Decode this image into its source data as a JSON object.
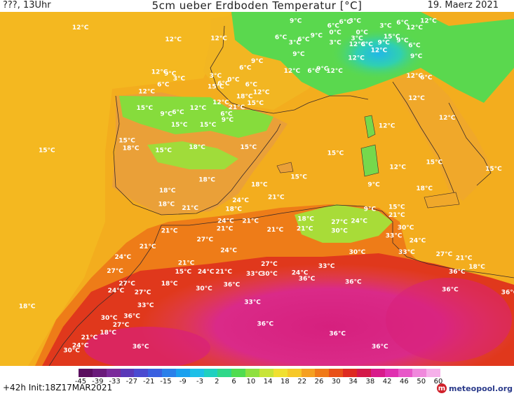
{
  "header": {
    "left_label": "???, 13Uhr",
    "title": "5cm ueber Erdboden Temperatur [°C]",
    "date": "19. Maerz 2021"
  },
  "footer": {
    "run_info": "+42h  Init:18Z17MAR2021",
    "brand": "meteopool.org",
    "brand_icon": "meteopool-logo-icon"
  },
  "legend": {
    "ticks": [
      "-45",
      "-39",
      "-33",
      "-27",
      "-21",
      "-15",
      "-9",
      "-3",
      "2",
      "6",
      "10",
      "14",
      "18",
      "22",
      "26",
      "30",
      "34",
      "38",
      "42",
      "46",
      "50",
      "60"
    ],
    "colors": [
      "#5a0e5e",
      "#6a1a7a",
      "#7a2a9a",
      "#5a38b8",
      "#4a4ad0",
      "#3a60e0",
      "#2a80ea",
      "#1aa0ef",
      "#1ec0e8",
      "#20d0c0",
      "#30d88a",
      "#50dc50",
      "#8ee040",
      "#c8e438",
      "#f0e030",
      "#f6c828",
      "#f5a020",
      "#f07a18",
      "#e85018",
      "#de2a20",
      "#d41848",
      "#d81a8a",
      "#e030b0",
      "#e858c8",
      "#f088dc",
      "#f6b0ea"
    ]
  },
  "temperature_labels": [
    {
      "t": "12°C",
      "lon": -15.2,
      "lat": 47.8
    },
    {
      "t": "12°C",
      "lon": -5.8,
      "lat": 46.6
    },
    {
      "t": "12°C",
      "lon": -1.2,
      "lat": 46.7
    },
    {
      "t": "9°C",
      "lon": 6.8,
      "lat": 48.5
    },
    {
      "t": "6°C",
      "lon": 10.6,
      "lat": 48.0
    },
    {
      "t": "3°C",
      "lon": 12.8,
      "lat": 48.5
    },
    {
      "t": "6°C",
      "lon": 11.8,
      "lat": 48.4
    },
    {
      "t": "3°C",
      "lon": 15.9,
      "lat": 48.0
    },
    {
      "t": "6°C",
      "lon": 17.6,
      "lat": 48.3
    },
    {
      "t": "12°C",
      "lon": 20.0,
      "lat": 48.5
    },
    {
      "t": "12°C",
      "lon": 18.6,
      "lat": 47.8
    },
    {
      "t": "0°C",
      "lon": 10.8,
      "lat": 47.3
    },
    {
      "t": "0°C",
      "lon": 13.5,
      "lat": 47.3
    },
    {
      "t": "3°C",
      "lon": 13.0,
      "lat": 46.7
    },
    {
      "t": "9°C",
      "lon": 8.9,
      "lat": 47.0
    },
    {
      "t": "6°C",
      "lon": 7.6,
      "lat": 46.6
    },
    {
      "t": "6°C",
      "lon": 5.3,
      "lat": 46.8
    },
    {
      "t": "3°C",
      "lon": 6.7,
      "lat": 46.3
    },
    {
      "t": "3°C",
      "lon": 10.8,
      "lat": 46.3
    },
    {
      "t": "12°C",
      "lon": 12.8,
      "lat": 46.1
    },
    {
      "t": "6°C",
      "lon": 14.0,
      "lat": 46.1
    },
    {
      "t": "9°C",
      "lon": 15.7,
      "lat": 46.3
    },
    {
      "t": "15°C",
      "lon": 16.3,
      "lat": 46.9
    },
    {
      "t": "9°C",
      "lon": 17.6,
      "lat": 46.5
    },
    {
      "t": "6°C",
      "lon": 18.8,
      "lat": 46.0
    },
    {
      "t": "12°C",
      "lon": 15.0,
      "lat": 45.5
    },
    {
      "t": "12°C",
      "lon": 12.7,
      "lat": 44.7
    },
    {
      "t": "9°C",
      "lon": 19.0,
      "lat": 44.9
    },
    {
      "t": "9°C",
      "lon": 7.1,
      "lat": 45.1
    },
    {
      "t": "9°C",
      "lon": 2.9,
      "lat": 44.4
    },
    {
      "t": "6°C",
      "lon": 1.7,
      "lat": 43.7
    },
    {
      "t": "12°C",
      "lon": 6.2,
      "lat": 43.4
    },
    {
      "t": "12°C",
      "lon": 10.5,
      "lat": 43.4
    },
    {
      "t": "6°C",
      "lon": 8.6,
      "lat": 43.4
    },
    {
      "t": "9°C",
      "lon": 9.5,
      "lat": 43.6
    },
    {
      "t": "12°C",
      "lon": 18.6,
      "lat": 42.9
    },
    {
      "t": "6°C",
      "lon": 20.0,
      "lat": 42.7
    },
    {
      "t": "12°C",
      "lon": -7.2,
      "lat": 43.3
    },
    {
      "t": "9°C",
      "lon": -5.9,
      "lat": 43.1
    },
    {
      "t": "3°C",
      "lon": -5.0,
      "lat": 42.6
    },
    {
      "t": "3°C",
      "lon": -1.3,
      "lat": 42.9
    },
    {
      "t": "0°C",
      "lon": 0.5,
      "lat": 42.5
    },
    {
      "t": "6°C",
      "lon": 2.3,
      "lat": 42.0
    },
    {
      "t": "6°C",
      "lon": -6.6,
      "lat": 42.0
    },
    {
      "t": "12°C",
      "lon": -8.5,
      "lat": 41.3
    },
    {
      "t": "15°C",
      "lon": -1.5,
      "lat": 41.8
    },
    {
      "t": "6°C",
      "lon": -0.5,
      "lat": 42.1
    },
    {
      "t": "12°C",
      "lon": 3.1,
      "lat": 41.2
    },
    {
      "t": "18°C",
      "lon": 1.4,
      "lat": 40.8
    },
    {
      "t": "12°C",
      "lon": -1.0,
      "lat": 40.2
    },
    {
      "t": "21°C",
      "lon": 0.6,
      "lat": 39.7
    },
    {
      "t": "15°C",
      "lon": 2.5,
      "lat": 40.1
    },
    {
      "t": "15°C",
      "lon": -8.7,
      "lat": 39.6
    },
    {
      "t": "9°C",
      "lon": -6.3,
      "lat": 39.0
    },
    {
      "t": "6°C",
      "lon": -5.1,
      "lat": 39.2
    },
    {
      "t": "12°C",
      "lon": -3.3,
      "lat": 39.6
    },
    {
      "t": "6°C",
      "lon": -0.2,
      "lat": 39.0
    },
    {
      "t": "15°C",
      "lon": -5.2,
      "lat": 37.9
    },
    {
      "t": "15°C",
      "lon": -2.3,
      "lat": 37.9
    },
    {
      "t": "9°C",
      "lon": -0.1,
      "lat": 38.4
    },
    {
      "t": "15°C",
      "lon": -10.5,
      "lat": 36.3
    },
    {
      "t": "18°C",
      "lon": -10.1,
      "lat": 35.5
    },
    {
      "t": "15°C",
      "lon": -6.8,
      "lat": 35.3
    },
    {
      "t": "18°C",
      "lon": -3.4,
      "lat": 35.6
    },
    {
      "t": "15°C",
      "lon": 1.8,
      "lat": 35.6
    },
    {
      "t": "15°C",
      "lon": -18.6,
      "lat": 35.3
    },
    {
      "t": "15°C",
      "lon": 10.6,
      "lat": 35.0
    },
    {
      "t": "12°C",
      "lon": 15.8,
      "lat": 37.8
    },
    {
      "t": "12°C",
      "lon": 18.8,
      "lat": 40.6
    },
    {
      "t": "12°C",
      "lon": 21.9,
      "lat": 38.6
    },
    {
      "t": "12°C",
      "lon": 16.9,
      "lat": 33.6
    },
    {
      "t": "15°C",
      "lon": 20.6,
      "lat": 34.1
    },
    {
      "t": "15°C",
      "lon": 26.6,
      "lat": 33.4
    },
    {
      "t": "18°C",
      "lon": -2.4,
      "lat": 32.3
    },
    {
      "t": "18°C",
      "lon": -6.4,
      "lat": 31.2
    },
    {
      "t": "15°C",
      "lon": 6.9,
      "lat": 32.6
    },
    {
      "t": "9°C",
      "lon": 14.7,
      "lat": 31.8
    },
    {
      "t": "18°C",
      "lon": 2.9,
      "lat": 31.8
    },
    {
      "t": "18°C",
      "lon": 19.6,
      "lat": 31.4
    },
    {
      "t": "18°C",
      "lon": -6.5,
      "lat": 29.8
    },
    {
      "t": "21°C",
      "lon": -4.1,
      "lat": 29.4
    },
    {
      "t": "18°C",
      "lon": 0.3,
      "lat": 29.3
    },
    {
      "t": "24°C",
      "lon": 1.0,
      "lat": 30.2
    },
    {
      "t": "21°C",
      "lon": 4.6,
      "lat": 30.5
    },
    {
      "t": "9°C",
      "lon": 14.3,
      "lat": 29.3
    },
    {
      "t": "15°C",
      "lon": 16.8,
      "lat": 29.5
    },
    {
      "t": "21°C",
      "lon": 16.8,
      "lat": 28.7
    },
    {
      "t": "24°C",
      "lon": -0.5,
      "lat": 28.1
    },
    {
      "t": "21°C",
      "lon": -0.6,
      "lat": 27.3
    },
    {
      "t": "21°C",
      "lon": 2.0,
      "lat": 28.1
    },
    {
      "t": "18°C",
      "lon": 7.6,
      "lat": 28.3
    },
    {
      "t": "27°C",
      "lon": 11.0,
      "lat": 28.0
    },
    {
      "t": "30°C",
      "lon": 11.0,
      "lat": 27.1
    },
    {
      "t": "24°C",
      "lon": 13.0,
      "lat": 28.1
    },
    {
      "t": "21°C",
      "lon": 4.5,
      "lat": 27.2
    },
    {
      "t": "21°C",
      "lon": 7.5,
      "lat": 27.3
    },
    {
      "t": "33°C",
      "lon": 16.5,
      "lat": 26.6
    },
    {
      "t": "30°C",
      "lon": 17.7,
      "lat": 27.4
    },
    {
      "t": "24°C",
      "lon": 18.9,
      "lat": 26.1
    },
    {
      "t": "21°C",
      "lon": -6.2,
      "lat": 27.1
    },
    {
      "t": "27°C",
      "lon": -2.6,
      "lat": 26.2
    },
    {
      "t": "24°C",
      "lon": -0.2,
      "lat": 25.1
    },
    {
      "t": "21°C",
      "lon": -8.4,
      "lat": 25.5
    },
    {
      "t": "24°C",
      "lon": -10.9,
      "lat": 24.4
    },
    {
      "t": "27°C",
      "lon": -11.7,
      "lat": 23.0
    },
    {
      "t": "21°C",
      "lon": -4.5,
      "lat": 23.8
    },
    {
      "t": "15°C",
      "lon": -4.8,
      "lat": 22.9
    },
    {
      "t": "24°C",
      "lon": -2.5,
      "lat": 22.9
    },
    {
      "t": "21°C",
      "lon": -0.7,
      "lat": 22.9
    },
    {
      "t": "27°C",
      "lon": 3.9,
      "lat": 23.7
    },
    {
      "t": "33°C",
      "lon": 2.4,
      "lat": 22.7
    },
    {
      "t": "30°C",
      "lon": 3.9,
      "lat": 22.7
    },
    {
      "t": "24°C",
      "lon": 7.0,
      "lat": 22.8
    },
    {
      "t": "36°C",
      "lon": 7.7,
      "lat": 22.2
    },
    {
      "t": "33°C",
      "lon": 9.7,
      "lat": 23.5
    },
    {
      "t": "30°C",
      "lon": 12.8,
      "lat": 24.9
    },
    {
      "t": "33°C",
      "lon": 17.8,
      "lat": 24.9
    },
    {
      "t": "27°C",
      "lon": 21.6,
      "lat": 24.7
    },
    {
      "t": "21°C",
      "lon": 23.6,
      "lat": 24.3
    },
    {
      "t": "18°C",
      "lon": 24.9,
      "lat": 23.4
    },
    {
      "t": "36°C",
      "lon": 22.9,
      "lat": 22.9
    },
    {
      "t": "27°C",
      "lon": -10.5,
      "lat": 21.7
    },
    {
      "t": "24°C",
      "lon": -11.6,
      "lat": 21.0
    },
    {
      "t": "27°C",
      "lon": -8.9,
      "lat": 20.8
    },
    {
      "t": "18°C",
      "lon": -6.2,
      "lat": 21.7
    },
    {
      "t": "30°C",
      "lon": -2.7,
      "lat": 21.2
    },
    {
      "t": "36°C",
      "lon": 0.1,
      "lat": 21.6
    },
    {
      "t": "36°C",
      "lon": 12.4,
      "lat": 21.9
    },
    {
      "t": "36°C",
      "lon": 22.2,
      "lat": 21.1
    },
    {
      "t": "36°C",
      "lon": 28.2,
      "lat": 20.8
    },
    {
      "t": "33°C",
      "lon": -8.6,
      "lat": 19.5
    },
    {
      "t": "33°C",
      "lon": 2.2,
      "lat": 19.8
    },
    {
      "t": "18°C",
      "lon": -20.6,
      "lat": 19.4
    },
    {
      "t": "36°C",
      "lon": -10.0,
      "lat": 18.4
    },
    {
      "t": "30°C",
      "lon": -12.3,
      "lat": 18.2
    },
    {
      "t": "27°C",
      "lon": -11.1,
      "lat": 17.5
    },
    {
      "t": "36°C",
      "lon": 3.5,
      "lat": 17.6
    },
    {
      "t": "18°C",
      "lon": -12.4,
      "lat": 16.7
    },
    {
      "t": "21°C",
      "lon": -14.3,
      "lat": 16.2
    },
    {
      "t": "36°C",
      "lon": 10.8,
      "lat": 16.6
    },
    {
      "t": "24°C",
      "lon": -15.2,
      "lat": 15.4
    },
    {
      "t": "30°C",
      "lon": -16.1,
      "lat": 14.9
    },
    {
      "t": "36°C",
      "lon": -9.1,
      "lat": 15.3
    },
    {
      "t": "36°C",
      "lon": 15.1,
      "lat": 15.3
    }
  ]
}
